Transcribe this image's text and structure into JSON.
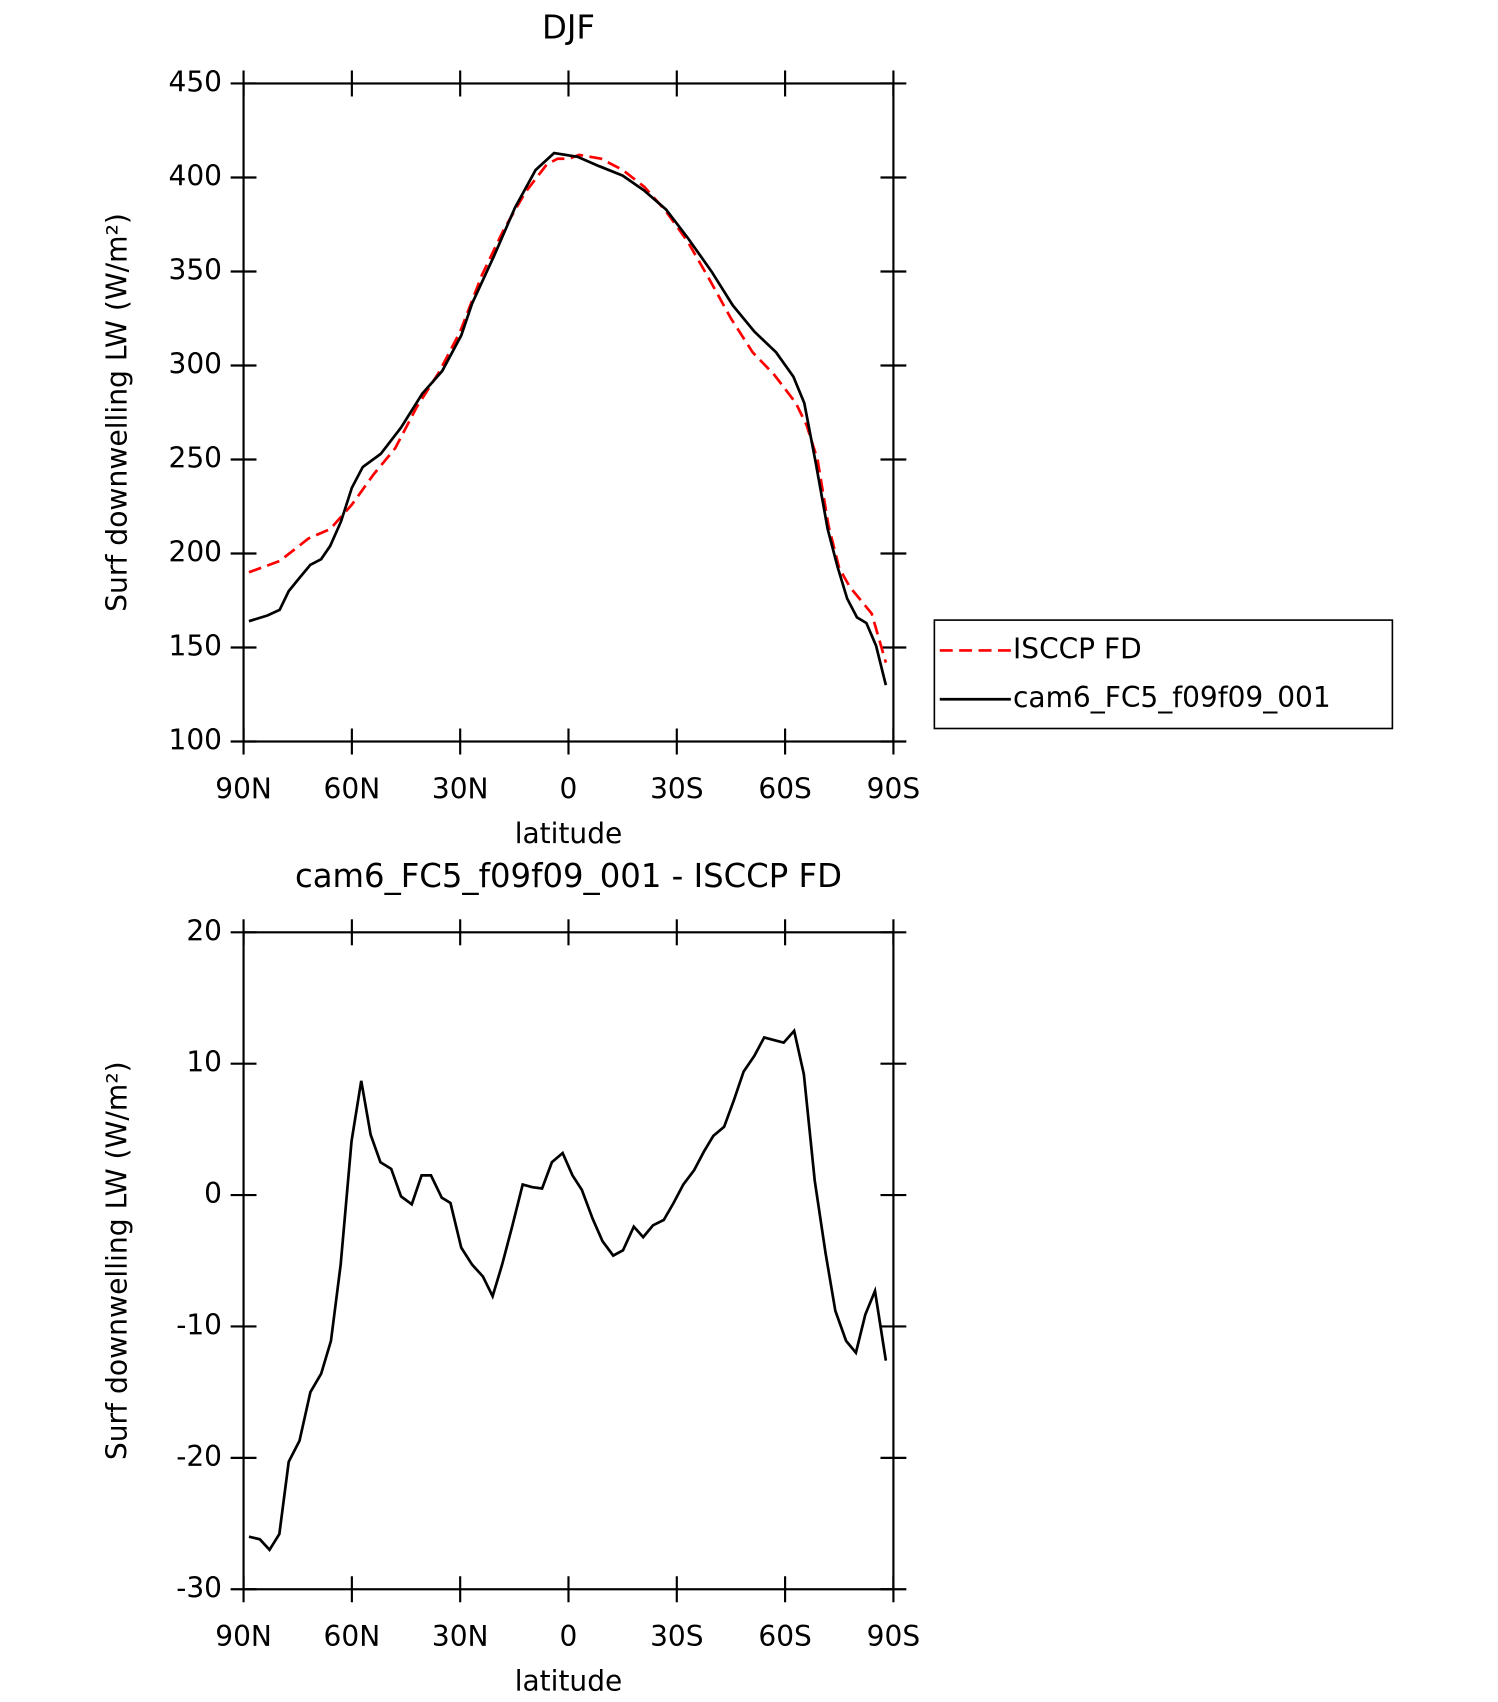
{
  "chart_data": [
    {
      "type": "line",
      "title": "DJF",
      "x_label": "latitude",
      "y_label": "Surf downwelling LW (W/m²)",
      "xlim": [
        90,
        -90
      ],
      "xticks": [
        {
          "value": 90,
          "label": "90N"
        },
        {
          "value": 60,
          "label": "60N"
        },
        {
          "value": 30,
          "label": "30N"
        },
        0,
        {
          "value": -30,
          "label": "30S"
        },
        {
          "value": -60,
          "label": "60S"
        },
        {
          "value": -90,
          "label": "90S"
        }
      ],
      "ylim": [
        100,
        450
      ],
      "yticks": [
        100,
        150,
        200,
        250,
        300,
        350,
        400,
        450
      ],
      "legend": "right",
      "series": [
        {
          "name": "ISCCP FD",
          "color": "#ff0000",
          "line_style": "dashed",
          "x": [
            88.5,
            80,
            72,
            66,
            60,
            54,
            48,
            42,
            36,
            30,
            24,
            18,
            12,
            6,
            3,
            0,
            -3,
            -9,
            -15,
            -21,
            -27,
            -33,
            -39,
            -45,
            -51,
            -57,
            -63,
            -66,
            -69,
            -72,
            -75,
            -78,
            -81,
            -84,
            -87.9
          ],
          "values": [
            190,
            196,
            208,
            213,
            226,
            242,
            256,
            278,
            296,
            318,
            348,
            372,
            392,
            407,
            410,
            410,
            412,
            410,
            404,
            395,
            382,
            366,
            346,
            325,
            307,
            295,
            280,
            268,
            250,
            215,
            192,
            182,
            175,
            168,
            142
          ]
        },
        {
          "name": "cam6_FC5_f09f09_001",
          "color": "#000000",
          "line_style": "solid",
          "x": [
            88.5,
            83.4,
            80,
            77.5,
            74.5,
            71.5,
            68.5,
            66,
            63,
            60,
            57,
            52,
            46.4,
            40.5,
            35,
            29.7,
            26.7,
            20.7,
            14.8,
            9.1,
            4,
            -2.5,
            -8.5,
            -15,
            -21,
            -27,
            -33,
            -39.6,
            -45.5,
            -51.5,
            -57.5,
            -62.3,
            -65.3,
            -68.5,
            -71.8,
            -74.5,
            -77.2,
            -79.9,
            -82.5,
            -85.2,
            -87.9
          ],
          "values": [
            164,
            167,
            170,
            180,
            187,
            194,
            197,
            204,
            217,
            235,
            246,
            253,
            267,
            285,
            297,
            316,
            333,
            358,
            384,
            404,
            413,
            411,
            406,
            401,
            393,
            383,
            368,
            350,
            332,
            318,
            307,
            294,
            280,
            248,
            213,
            193,
            176,
            166,
            163,
            151,
            130
          ]
        }
      ]
    },
    {
      "type": "line",
      "title": "cam6_FC5_f09f09_001 - ISCCP FD",
      "x_label": "latitude",
      "y_label": "Surf downwelling LW (W/m²)",
      "xlim": [
        90,
        -90
      ],
      "xticks": [
        {
          "value": 90,
          "label": "90N"
        },
        {
          "value": 60,
          "label": "60N"
        },
        {
          "value": 30,
          "label": "30N"
        },
        0,
        {
          "value": -30,
          "label": "30S"
        },
        {
          "value": -60,
          "label": "60S"
        },
        {
          "value": -90,
          "label": "90S"
        }
      ],
      "ylim": [
        -30,
        20
      ],
      "yticks": [
        -30,
        -20,
        -10,
        0,
        10,
        20
      ],
      "series": [
        {
          "color": "#000000",
          "line_style": "solid",
          "x": [
            88.5,
            85.5,
            82.8,
            80.1,
            77.5,
            74.5,
            71.5,
            68.5,
            65.8,
            63.1,
            60.1,
            57.4,
            54.8,
            52.1,
            49.1,
            46.4,
            43.4,
            40.7,
            38.1,
            35.1,
            32.7,
            29.7,
            26.7,
            23.7,
            21,
            18.4,
            15.7,
            12.7,
            10,
            7.3,
            4.6,
            1.6,
            -1.1,
            -3.7,
            -6.7,
            -9.4,
            -12.4,
            -15.1,
            -18.1,
            -20.7,
            -23.4,
            -26.4,
            -29.1,
            -31.8,
            -34.8,
            -37.5,
            -40.1,
            -43.1,
            -45.8,
            -48.5,
            -51.5,
            -54.2,
            -56.9,
            -59.6,
            -62.5,
            -65.2,
            -68.2,
            -71.2,
            -73.9,
            -76.9,
            -79.6,
            -82.2,
            -84.9,
            -87.9
          ],
          "values": [
            -26,
            -26.2,
            -27,
            -25.8,
            -20.3,
            -18.7,
            -15,
            -13.6,
            -11.1,
            -5.3,
            4.1,
            8.7,
            4.6,
            2.5,
            2,
            -0.1,
            -0.7,
            1.5,
            1.5,
            -0.2,
            -0.6,
            -4,
            -5.3,
            -6.2,
            -7.7,
            -5.3,
            -2.5,
            0.8,
            0.6,
            0.5,
            2.5,
            3.2,
            1.5,
            0.4,
            -1.8,
            -3.5,
            -4.6,
            -4.2,
            -2.4,
            -3.2,
            -2.3,
            -1.9,
            -0.6,
            0.8,
            1.9,
            3.3,
            4.5,
            5.2,
            7.2,
            9.4,
            10.6,
            12,
            11.8,
            11.6,
            12.5,
            9.2,
            1.1,
            -4.4,
            -8.8,
            -11.1,
            -12,
            -9.1,
            -7.3,
            -12.6
          ]
        }
      ]
    }
  ]
}
